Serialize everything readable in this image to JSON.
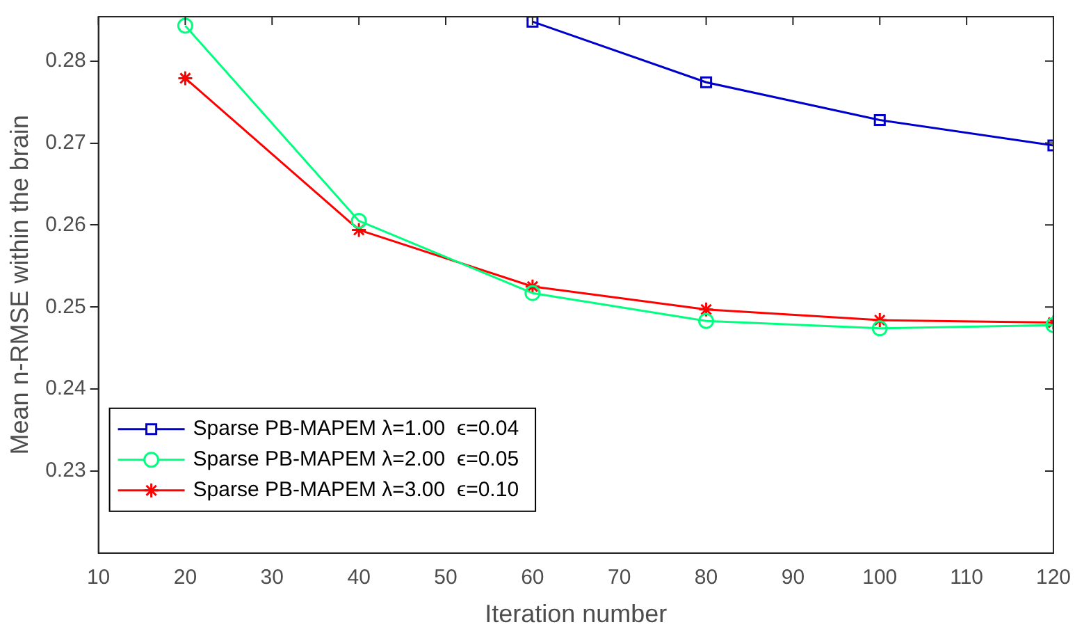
{
  "chart_data": {
    "type": "line",
    "xlabel": "Iteration number",
    "ylabel": "Mean n-RMSE within the brain",
    "x": [
      20,
      40,
      60,
      80,
      100,
      120
    ],
    "series": [
      {
        "name": "Sparse PB-MAPEM λ=1.00  ϵ=0.04",
        "color": "#0000cc",
        "marker": "square",
        "values": [
          null,
          null,
          0.2848,
          0.2774,
          0.2728,
          0.2697
        ]
      },
      {
        "name": "Sparse PB-MAPEM λ=2.00  ϵ=0.05",
        "color": "#00ff80",
        "marker": "circle",
        "values": [
          0.2843,
          0.2605,
          0.2517,
          0.2483,
          0.2474,
          0.2478
        ]
      },
      {
        "name": "Sparse PB-MAPEM λ=3.00  ϵ=0.10",
        "color": "#ff0000",
        "marker": "cross",
        "values": [
          0.2779,
          0.2594,
          0.2525,
          0.2497,
          0.2484,
          0.2481
        ]
      }
    ],
    "xlim": [
      10,
      120
    ],
    "xticks": [
      10,
      20,
      30,
      40,
      50,
      60,
      70,
      80,
      90,
      100,
      110,
      120
    ],
    "ylim": [
      0.22,
      0.2854
    ],
    "yticks": [
      0.23,
      0.24,
      0.25,
      0.26,
      0.27,
      0.28
    ],
    "grid": false,
    "legend": "bottom left",
    "line_style": "solid"
  }
}
